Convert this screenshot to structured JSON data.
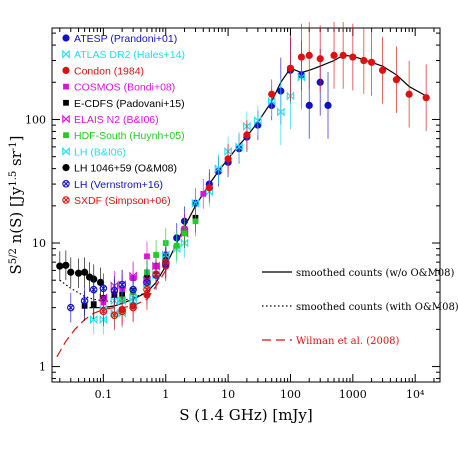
{
  "chart_data": {
    "type": "scatter",
    "title": "",
    "xlabel": "S (1.4 GHz) [mJy]",
    "ylabel": "S^{5/2} n(S) [Jy^{1.5} sr^{-1}]",
    "x_scale": "log",
    "y_scale": "log",
    "xlim": [
      0.015,
      25000
    ],
    "ylim": [
      0.75,
      550
    ],
    "x_ticks": [
      {
        "value": 0.1,
        "label": "0.1"
      },
      {
        "value": 1,
        "label": "1"
      },
      {
        "value": 10,
        "label": "10"
      },
      {
        "value": 100,
        "label": "100"
      },
      {
        "value": 1000,
        "label": "1000"
      },
      {
        "value": 10000,
        "label": "10⁴"
      }
    ],
    "y_ticks": [
      {
        "value": 1,
        "label": "1"
      },
      {
        "value": 10,
        "label": "10"
      },
      {
        "value": 100,
        "label": "100"
      }
    ],
    "legend": {
      "placement": "top-left",
      "entries": [
        {
          "label": "ATESP (Prandoni+01)",
          "color": "#1010cc",
          "marker": "circle"
        },
        {
          "label": "ATLAS DR2 (Hales+14)",
          "color": "#22ddee",
          "marker": "bowtie"
        },
        {
          "label": "Condon (1984)",
          "color": "#dd1111",
          "marker": "circle"
        },
        {
          "label": "COSMOS (Bondi+08)",
          "color": "#dd11dd",
          "marker": "square"
        },
        {
          "label": "E-CDFS (Padovani+15)",
          "color": "#000000",
          "marker": "square"
        },
        {
          "label": "ELAIS N2 (B&I06)",
          "color": "#dd11dd",
          "marker": "bowtie"
        },
        {
          "label": "HDF-South (Huynh+05)",
          "color": "#22cc22",
          "marker": "square"
        },
        {
          "label": "LH (B&I06)",
          "color": "#22ddee",
          "marker": "bowtie"
        },
        {
          "label": "LH 1046+59 (O&M08)",
          "color": "#000000",
          "marker": "circle"
        },
        {
          "label": "LH (Vernstrom+16)",
          "color": "#1010cc",
          "marker": "circle-x"
        },
        {
          "label": "SXDF (Simpson+06)",
          "color": "#dd1111",
          "marker": "circle-x"
        }
      ]
    },
    "line_legend": {
      "placement": "center-right",
      "entries": [
        {
          "label": "smoothed counts (w/o O&M08)",
          "color": "#000000",
          "style": "solid"
        },
        {
          "label": "smoothed counts (with O&M08)",
          "color": "#000000",
          "style": "dotted"
        },
        {
          "label": "Wilman et al. (2008)",
          "color": "#dd1111",
          "style": "dashed"
        }
      ]
    },
    "lines": [
      {
        "name": "smoothed counts (w/o O&M08)",
        "style": "solid",
        "color": "#000000",
        "x": [
          0.06,
          0.08,
          0.1,
          0.15,
          0.2,
          0.3,
          0.5,
          0.7,
          1,
          1.5,
          2,
          3,
          5,
          7,
          10,
          15,
          20,
          30,
          50,
          70,
          100,
          150,
          200,
          300,
          500,
          700,
          1000,
          2000,
          3000,
          5000,
          8000,
          15000
        ],
        "y": [
          3.0,
          3.0,
          3.0,
          3.1,
          3.25,
          3.5,
          4.0,
          4.8,
          6.5,
          10,
          13.5,
          20,
          30,
          38,
          48,
          62,
          73,
          95,
          140,
          200,
          260,
          240,
          250,
          270,
          300,
          330,
          325,
          290,
          270,
          230,
          185,
          155
        ]
      },
      {
        "name": "smoothed counts (with O&M08)",
        "style": "dotted",
        "color": "#000000",
        "x": [
          0.02,
          0.03,
          0.05,
          0.07,
          0.1,
          0.15,
          0.2,
          0.3,
          0.5
        ],
        "y": [
          5.0,
          4.3,
          3.7,
          3.5,
          3.4,
          3.35,
          3.4,
          3.6,
          4.0
        ]
      },
      {
        "name": "Wilman et al. (2008)",
        "style": "dashed",
        "color": "#dd1111",
        "x": [
          0.018,
          0.025,
          0.035,
          0.05,
          0.07,
          0.1,
          0.15,
          0.2,
          0.3,
          0.5,
          0.7,
          1
        ],
        "y": [
          1.2,
          1.6,
          2.0,
          2.4,
          2.7,
          2.9,
          3.0,
          3.0,
          3.1,
          3.5,
          4.5,
          6.0
        ]
      }
    ],
    "series": [
      {
        "name": "ATESP (Prandoni+01)",
        "color": "#1010cc",
        "marker": "circle",
        "x": [
          0.5,
          0.7,
          1,
          1.5,
          2,
          3,
          5,
          7,
          10,
          15,
          20,
          30,
          50,
          70,
          100,
          150,
          200,
          300,
          400
        ],
        "y": [
          5,
          6.5,
          8,
          11,
          15,
          21,
          30,
          38,
          45,
          58,
          72,
          90,
          130,
          170,
          250,
          230,
          130,
          200,
          130
        ]
      },
      {
        "name": "ATLAS DR2 (Hales+14)",
        "color": "#22ddee",
        "marker": "bowtie",
        "x": [
          0.07,
          0.1,
          0.15,
          0.2,
          0.3,
          0.5,
          0.7,
          1,
          1.5,
          2,
          3,
          5,
          7,
          10,
          15,
          20,
          30,
          50,
          70,
          100,
          150
        ],
        "y": [
          2.4,
          2.9,
          3.4,
          2.7,
          3.4,
          4.7,
          6.5,
          7.2,
          9,
          10,
          21,
          26,
          40,
          55,
          60,
          88,
          98,
          140,
          115,
          155,
          220
        ]
      },
      {
        "name": "Condon (1984)",
        "color": "#dd1111",
        "marker": "circle",
        "x": [
          0.2,
          0.3,
          0.5,
          1,
          2,
          5,
          10,
          20,
          50,
          100,
          150,
          200,
          300,
          500,
          700,
          1000,
          1500,
          2000,
          3000,
          5000,
          8000,
          15000
        ],
        "y": [
          2.9,
          3.1,
          3.8,
          6.5,
          13,
          28,
          48,
          75,
          160,
          260,
          320,
          330,
          310,
          330,
          330,
          320,
          300,
          290,
          250,
          210,
          160,
          150
        ]
      },
      {
        "name": "COSMOS (Bondi+08)",
        "color": "#dd11dd",
        "marker": "square",
        "x": [
          0.1,
          0.15,
          0.2,
          0.3,
          0.5,
          0.7,
          1,
          2,
          4
        ],
        "y": [
          3.3,
          3.9,
          4.2,
          5.2,
          7.8,
          6.5,
          7.5,
          13,
          25
        ]
      },
      {
        "name": "E-CDFS (Padovani+15)",
        "color": "#000000",
        "marker": "square",
        "x": [
          0.05,
          0.07,
          0.1,
          0.15,
          0.2,
          0.3,
          0.5,
          1,
          2,
          3
        ],
        "y": [
          3.1,
          3.2,
          3.6,
          3.8,
          3.8,
          4.1,
          5.4,
          7.8,
          12,
          16
        ]
      },
      {
        "name": "ELAIS N2 (B&I06)",
        "color": "#dd11dd",
        "marker": "bowtie",
        "x": [
          0.1,
          0.15,
          0.2,
          0.3,
          0.5,
          0.7,
          1,
          2
        ],
        "y": [
          3.6,
          4.5,
          4.6,
          5.4,
          5.0,
          6.5,
          8.0,
          12
        ]
      },
      {
        "name": "HDF-South (Huynh+05)",
        "color": "#22cc22",
        "marker": "square",
        "x": [
          0.2,
          0.3,
          0.5,
          0.7,
          1,
          1.5,
          2,
          3
        ],
        "y": [
          3.5,
          4.0,
          5.8,
          8.0,
          10,
          9.5,
          12,
          15
        ]
      },
      {
        "name": "LH (B&I06)",
        "color": "#22ddee",
        "marker": "bowtie",
        "x": [
          0.1,
          0.15,
          0.2,
          0.3,
          0.5,
          0.7,
          1
        ],
        "y": [
          2.4,
          2.7,
          3.4,
          3.6,
          4.8,
          5.5,
          8
        ]
      },
      {
        "name": "LH 1046+59 (O&M08)",
        "color": "#000000",
        "marker": "circle",
        "x": [
          0.02,
          0.025,
          0.03,
          0.04,
          0.05,
          0.06,
          0.07,
          0.09
        ],
        "y": [
          6.5,
          6.6,
          5.8,
          5.7,
          5.8,
          5.3,
          5.1,
          4.8
        ]
      },
      {
        "name": "LH (Vernstrom+16)",
        "color": "#1010cc",
        "marker": "circle-x",
        "x": [
          0.03,
          0.05,
          0.07,
          0.1,
          0.15,
          0.2,
          0.3,
          0.5,
          0.7,
          1
        ],
        "y": [
          3.0,
          3.4,
          4.2,
          4.3,
          4.1,
          4.6,
          4.2,
          4.8,
          5.5,
          6.8
        ]
      },
      {
        "name": "SXDF (Simpson+06)",
        "color": "#dd1111",
        "marker": "circle-x",
        "x": [
          0.1,
          0.15,
          0.2,
          0.3,
          0.5,
          0.7,
          1
        ],
        "y": [
          2.8,
          2.6,
          2.8,
          3.0,
          4.2,
          5.6,
          7
        ]
      }
    ],
    "grid": false
  }
}
